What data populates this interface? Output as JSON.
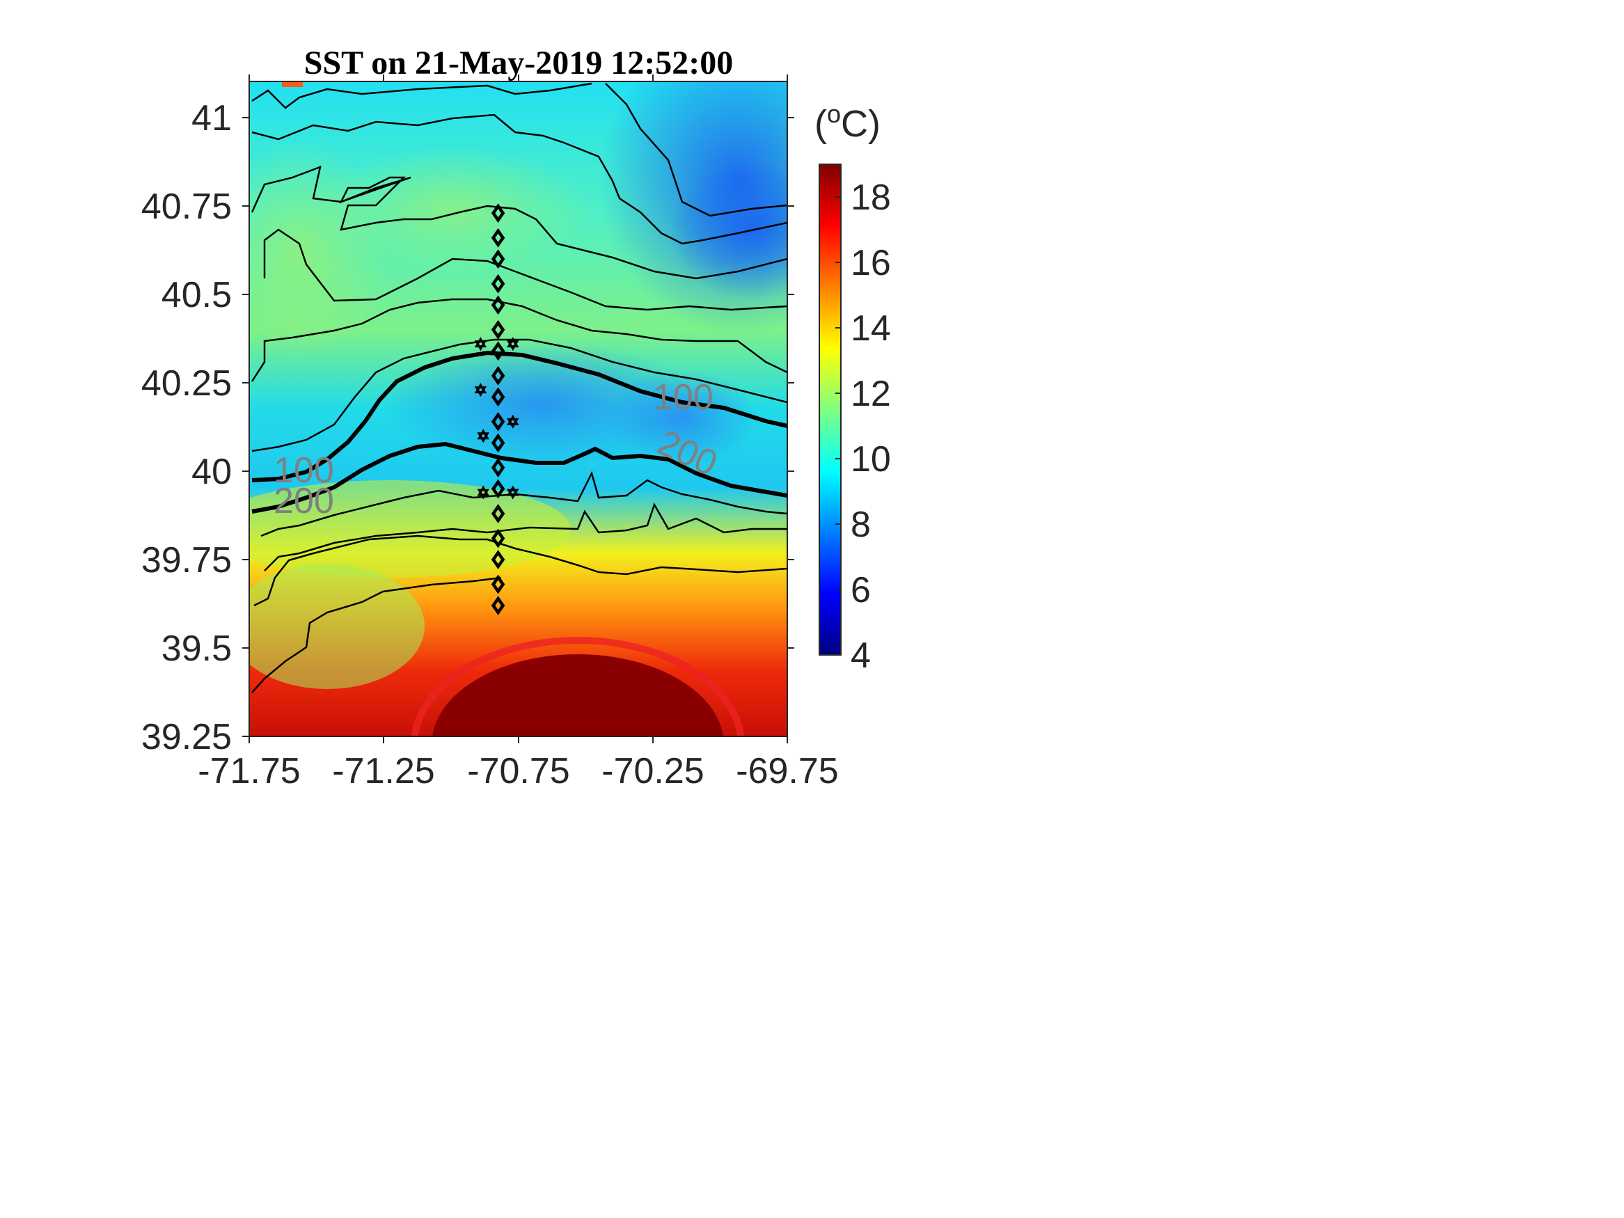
{
  "title": "SST on 21-May-2019 12:52:00",
  "map": {
    "lon_range": [
      -71.75,
      -69.75
    ],
    "lat_range": [
      39.25,
      41.1
    ],
    "x_ticks": [
      "-71.75",
      "-71.25",
      "-70.75",
      "-70.25",
      "-69.75"
    ],
    "y_ticks": [
      "41",
      "40.75",
      "40.5",
      "40.25",
      "40",
      "39.75",
      "39.5",
      "39.25"
    ],
    "isobath_labels": [
      {
        "text": "100",
        "lon": -71.63,
        "lat": 39.99
      },
      {
        "text": "200",
        "lon": -71.63,
        "lat": 39.92
      },
      {
        "text": "100",
        "lon": -70.2,
        "lat": 40.2
      },
      {
        "text": "200",
        "lon": -70.2,
        "lat": 40.02
      }
    ],
    "stations_diamond_lon": -70.83,
    "stations_diamond_lat": [
      40.73,
      40.66,
      40.6,
      40.53,
      40.47,
      40.4,
      40.34,
      40.27,
      40.21,
      40.14,
      40.08,
      40.01,
      39.95,
      39.88,
      39.81,
      39.75,
      39.68,
      39.62
    ],
    "stations_star": [
      {
        "lon": -70.89,
        "lat": 40.36
      },
      {
        "lon": -70.77,
        "lat": 40.36
      },
      {
        "lon": -70.89,
        "lat": 40.23
      },
      {
        "lon": -70.77,
        "lat": 40.14
      },
      {
        "lon": -70.88,
        "lat": 40.1
      },
      {
        "lon": -70.88,
        "lat": 39.94
      },
      {
        "lon": -70.77,
        "lat": 39.94
      }
    ]
  },
  "colorbar": {
    "unit_label": "(°C)",
    "unit_base": "(",
    "unit_sup": "o",
    "unit_tail": "C)",
    "ticks": [
      "18",
      "16",
      "14",
      "12",
      "10",
      "8",
      "6",
      "4"
    ],
    "range": [
      4,
      19
    ],
    "colormap": "jet"
  },
  "colors": {
    "axis": "#262626",
    "contour": "#000000",
    "contour_label": "#808080",
    "warm_core": "#7f0000"
  }
}
